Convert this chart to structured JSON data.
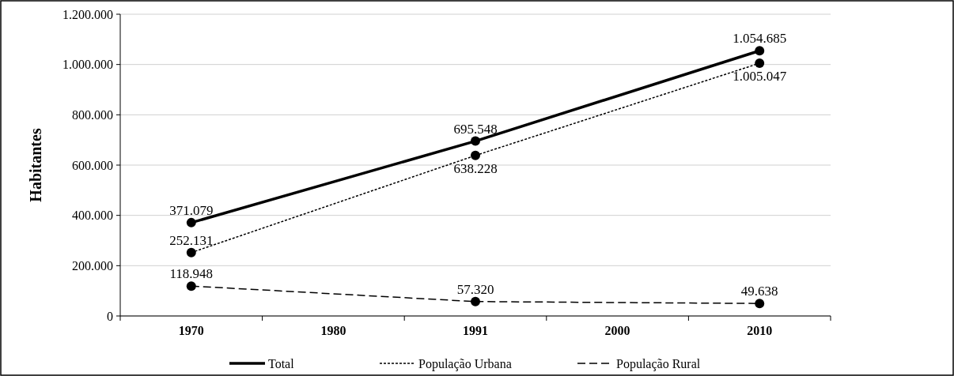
{
  "chart_data": {
    "type": "line",
    "ylabel": "Habitantes",
    "categories": [
      "1970",
      "1980",
      "1991",
      "2000",
      "2010"
    ],
    "ylim": [
      0,
      1200000
    ],
    "yticks": [
      {
        "value": 0,
        "label": "0"
      },
      {
        "value": 200000,
        "label": "200.000"
      },
      {
        "value": 400000,
        "label": "400.000"
      },
      {
        "value": 600000,
        "label": "600.000"
      },
      {
        "value": 800000,
        "label": "800.000"
      },
      {
        "value": 1000000,
        "label": "1.000.000"
      },
      {
        "value": 1200000,
        "label": "1.200.000"
      }
    ],
    "grid": "y",
    "legend": "bottom",
    "marker": "circle",
    "series": [
      {
        "name": "Total",
        "color": "#000000",
        "line_style": "solid",
        "values": [
          371079,
          null,
          695548,
          null,
          1054685
        ],
        "value_labels": [
          "371.079",
          null,
          "695.548",
          null,
          "1.054.685"
        ]
      },
      {
        "name": "População Urbana",
        "color": "#000000",
        "line_style": "dotted",
        "values": [
          252131,
          null,
          638228,
          null,
          1005047
        ],
        "value_labels": [
          "252.131",
          null,
          "638.228",
          null,
          "1.005.047"
        ]
      },
      {
        "name": "População Rural",
        "color": "#000000",
        "line_style": "dashed",
        "values": [
          118948,
          null,
          57320,
          null,
          49638
        ],
        "value_labels": [
          "118.948",
          null,
          "57.320",
          null,
          "49.638"
        ]
      }
    ]
  }
}
